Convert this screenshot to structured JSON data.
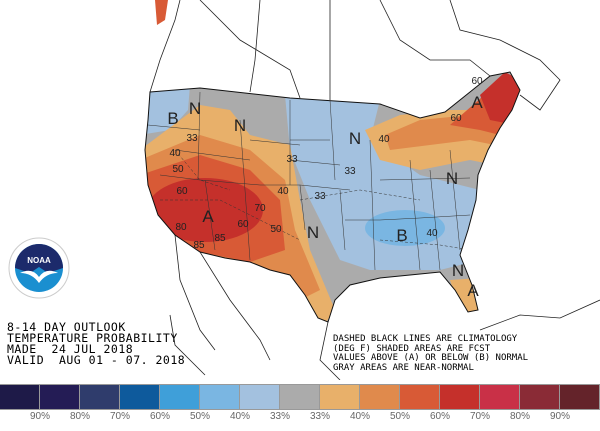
{
  "title_lines": [
    "8-14 DAY OUTLOOK",
    "TEMPERATURE PROBABILITY",
    "MADE  24 JUL 2018",
    "VALID  AUG 01 - 07. 2018"
  ],
  "note_lines": [
    "DASHED BLACK LINES ARE CLIMATOLOGY",
    "(DEG F) SHADED AREAS ARE FCST",
    "VALUES ABOVE (A) OR BELOW (B) NORMAL",
    "GRAY AREAS ARE NEAR-NORMAL"
  ],
  "logo_text": "NOAA",
  "legend": {
    "colors": [
      "#1e1a48",
      "#241c55",
      "#2f3c6c",
      "#0e5a9c",
      "#3f9fd9",
      "#7ab6e2",
      "#a3c1df",
      "#ababab",
      "#e8b06a",
      "#e08a4c",
      "#d85a36",
      "#c5302b",
      "#c93047",
      "#8a2b36",
      "#64232a"
    ],
    "labels": [
      "90%",
      "80%",
      "70%",
      "60%",
      "50%",
      "40%",
      "33%",
      "33%",
      "40%",
      "50%",
      "60%",
      "70%",
      "80%",
      "90%"
    ]
  },
  "map_labels": [
    {
      "t": "B",
      "big": true
    },
    {
      "t": "N",
      "big": true
    },
    {
      "t": "N",
      "big": true
    },
    {
      "t": "A",
      "big": true
    },
    {
      "t": "33"
    },
    {
      "t": "40"
    },
    {
      "t": "50"
    },
    {
      "t": "60"
    },
    {
      "t": "80"
    },
    {
      "t": "85"
    },
    {
      "t": "85"
    },
    {
      "t": "60"
    },
    {
      "t": "50"
    },
    {
      "t": "70"
    },
    {
      "t": "40"
    },
    {
      "t": "33"
    },
    {
      "t": "N",
      "big": true
    },
    {
      "t": "33"
    },
    {
      "t": "33"
    },
    {
      "t": "N",
      "big": true
    },
    {
      "t": "40"
    },
    {
      "t": "B",
      "big": true
    },
    {
      "t": "40"
    },
    {
      "t": "N",
      "big": true
    },
    {
      "t": "N",
      "big": true
    },
    {
      "t": "A",
      "big": true
    },
    {
      "t": "A",
      "big": true
    },
    {
      "t": "60"
    },
    {
      "t": "60"
    }
  ]
}
